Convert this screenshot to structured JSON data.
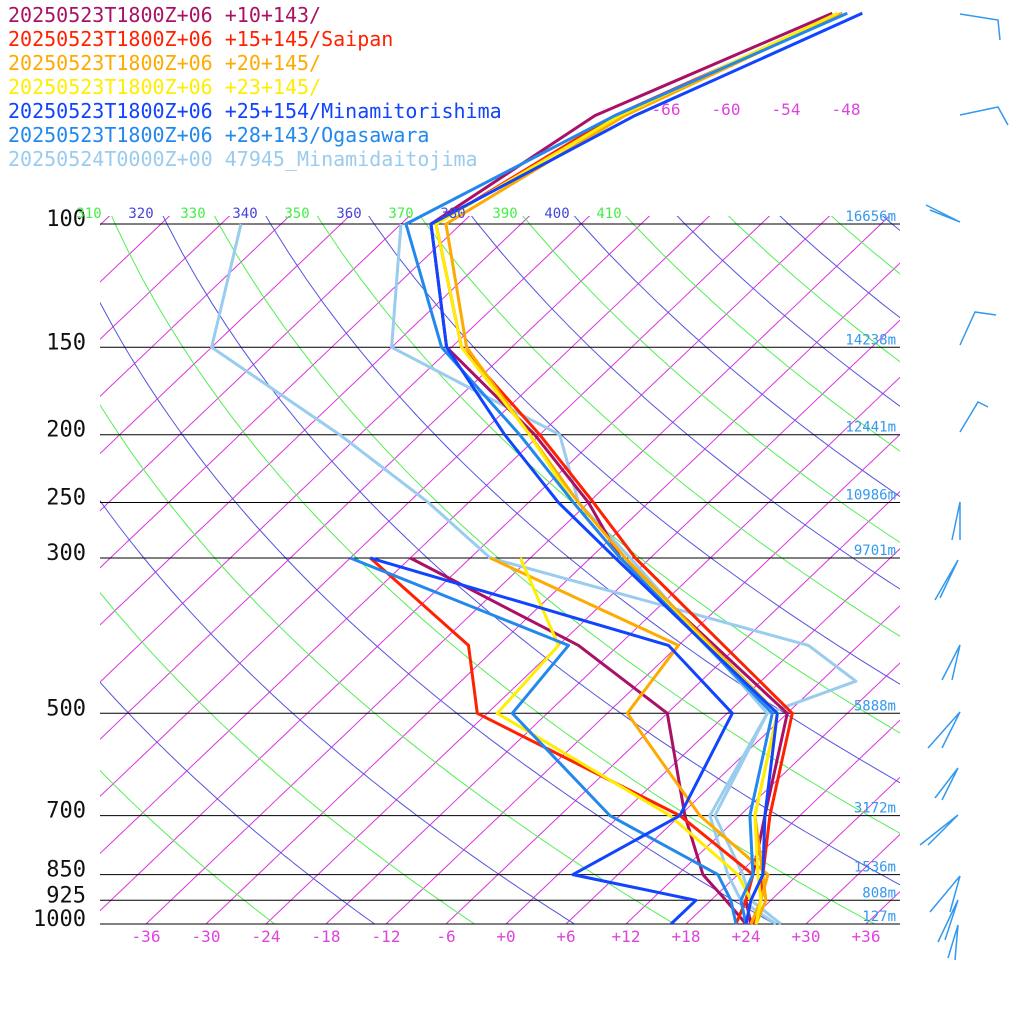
{
  "chart_data": {
    "type": "line",
    "title": "",
    "xlabel": "",
    "ylabel": "",
    "x_ticks": [
      "-36",
      "-30",
      "-24",
      "-18",
      "-12",
      "-6",
      "+0",
      "+6",
      "+12",
      "+18",
      "+24",
      "+30",
      "+36"
    ],
    "pressure_levels": [
      {
        "p": 100,
        "label": "100",
        "height": "16656m"
      },
      {
        "p": 150,
        "label": "150",
        "height": "14238m"
      },
      {
        "p": 200,
        "label": "200",
        "height": "12441m"
      },
      {
        "p": 250,
        "label": "250",
        "height": "10986m"
      },
      {
        "p": 300,
        "label": "300",
        "height": "9701m"
      },
      {
        "p": 500,
        "label": "500",
        "height": "5888m"
      },
      {
        "p": 700,
        "label": "700",
        "height": "3172m"
      },
      {
        "p": 850,
        "label": "850",
        "height": "1536m"
      },
      {
        "p": 925,
        "label": "925",
        "height": "808m"
      },
      {
        "p": 1000,
        "label": "1000",
        "height": "127m"
      }
    ],
    "theta_labels": [
      {
        "value": "310",
        "color": "#44ee44"
      },
      {
        "value": "320",
        "color": "#4444dd"
      },
      {
        "value": "330",
        "color": "#44ee44"
      },
      {
        "value": "340",
        "color": "#4444dd"
      },
      {
        "value": "350",
        "color": "#44ee44"
      },
      {
        "value": "360",
        "color": "#4444dd"
      },
      {
        "value": "370",
        "color": "#44ee44"
      },
      {
        "value": "380",
        "color": "#4444dd"
      },
      {
        "value": "390",
        "color": "#44ee44"
      },
      {
        "value": "400",
        "color": "#4444dd"
      },
      {
        "value": "410",
        "color": "#44ee44"
      }
    ],
    "isotherm_labels": [
      "-66",
      "-60",
      "-54",
      "-48"
    ],
    "legend_placement": "top-left",
    "series": [
      {
        "name": "20250523T1800Z+06 +10+143/",
        "color": "#aa1166",
        "temperature": [
          [
            1000,
            24.5
          ],
          [
            925,
            21.5
          ],
          [
            850,
            19.5
          ],
          [
            700,
            14.5
          ],
          [
            500,
            6.0
          ],
          [
            300,
            -27.0
          ],
          [
            250,
            -36.0
          ],
          [
            200,
            -48.5
          ],
          [
            150,
            -66.5
          ],
          [
            100,
            -81.0
          ],
          [
            70,
            -76.0
          ],
          [
            50,
            -63.0
          ]
        ],
        "dewpoint": [
          [
            1000,
            24.0
          ],
          [
            925,
            19.5
          ],
          [
            850,
            14.5
          ],
          [
            700,
            6.5
          ],
          [
            500,
            -6.0
          ],
          [
            400,
            -22.0
          ],
          [
            300,
            -48.0
          ]
        ]
      },
      {
        "name": "20250523T1800Z+06 +15+145/Saipan",
        "color": "#ff2200",
        "temperature": [
          [
            1000,
            24.8
          ],
          [
            925,
            23.0
          ],
          [
            850,
            20.5
          ],
          [
            700,
            15.0
          ],
          [
            500,
            6.5
          ],
          [
            300,
            -25.5
          ],
          [
            250,
            -35.5
          ],
          [
            200,
            -48.0
          ],
          [
            150,
            -65.0
          ],
          [
            100,
            -80.5
          ],
          [
            70,
            -74.0
          ],
          [
            50,
            -62.0
          ]
        ],
        "dewpoint": [
          [
            1000,
            23.0
          ],
          [
            925,
            21.5
          ],
          [
            850,
            19.5
          ],
          [
            700,
            6.0
          ],
          [
            500,
            -25.0
          ],
          [
            400,
            -33.0
          ],
          [
            300,
            -52.0
          ]
        ]
      },
      {
        "name": "20250523T1800Z+06 +20+145/",
        "color": "#ffaa00",
        "temperature": [
          [
            1000,
            25.0
          ],
          [
            925,
            23.5
          ],
          [
            850,
            20.5
          ],
          [
            700,
            13.5
          ],
          [
            500,
            5.0
          ],
          [
            300,
            -26.5
          ],
          [
            250,
            -37.0
          ],
          [
            200,
            -49.0
          ],
          [
            150,
            -64.5
          ],
          [
            100,
            -79.5
          ],
          [
            70,
            -73.0
          ],
          [
            50,
            -62.0
          ]
        ],
        "dewpoint": [
          [
            1000,
            24.5
          ],
          [
            925,
            23.0
          ],
          [
            850,
            21.0
          ],
          [
            700,
            8.0
          ],
          [
            500,
            -10.0
          ],
          [
            400,
            -12.0
          ],
          [
            300,
            -40.0
          ]
        ]
      },
      {
        "name": "20250523T1800Z+06 +23+145/",
        "color": "#ffee00",
        "temperature": [
          [
            1000,
            25.0
          ],
          [
            925,
            23.0
          ],
          [
            850,
            20.0
          ],
          [
            700,
            13.5
          ],
          [
            500,
            5.0
          ],
          [
            300,
            -27.0
          ],
          [
            250,
            -37.5
          ],
          [
            200,
            -49.0
          ],
          [
            150,
            -65.0
          ],
          [
            100,
            -80.5
          ],
          [
            70,
            -73.5
          ],
          [
            50,
            -62.5
          ]
        ],
        "dewpoint": [
          [
            1000,
            24.0
          ],
          [
            925,
            22.0
          ],
          [
            850,
            18.0
          ],
          [
            700,
            5.0
          ],
          [
            500,
            -23.0
          ],
          [
            400,
            -24.0
          ],
          [
            300,
            -37.0
          ]
        ]
      },
      {
        "name": "20250523T1800Z+06 +25+154/Minamitorishima",
        "color": "#1144ff",
        "temperature": [
          [
            1000,
            24.0
          ],
          [
            925,
            22.0
          ],
          [
            850,
            20.5
          ],
          [
            700,
            14.5
          ],
          [
            500,
            5.0
          ],
          [
            300,
            -27.5
          ],
          [
            250,
            -39.0
          ],
          [
            200,
            -51.5
          ],
          [
            150,
            -66.5
          ],
          [
            100,
            -81.0
          ],
          [
            70,
            -72.0
          ],
          [
            50,
            -60.0
          ]
        ],
        "dewpoint": [
          [
            1000,
            16.5
          ],
          [
            925,
            16.5
          ],
          [
            850,
            1.5
          ],
          [
            700,
            6.0
          ],
          [
            500,
            0.5
          ],
          [
            400,
            -13.0
          ],
          [
            300,
            -52.0
          ]
        ]
      },
      {
        "name": "20250523T1800Z+06 +28+143/Ogasawara",
        "color": "#2288ee",
        "temperature": [
          [
            1000,
            24.0
          ],
          [
            925,
            21.0
          ],
          [
            850,
            19.5
          ],
          [
            700,
            13.0
          ],
          [
            500,
            4.5
          ],
          [
            300,
            -27.0
          ],
          [
            250,
            -37.5
          ],
          [
            200,
            -50.0
          ],
          [
            150,
            -67.0
          ],
          [
            100,
            -83.5
          ],
          [
            70,
            -74.0
          ],
          [
            50,
            -61.5
          ]
        ],
        "dewpoint": [
          [
            1000,
            23.0
          ],
          [
            925,
            20.0
          ],
          [
            850,
            16.0
          ],
          [
            700,
            -1.0
          ],
          [
            500,
            -21.5
          ],
          [
            400,
            -23.0
          ],
          [
            300,
            -54.0
          ]
        ]
      },
      {
        "name": "20250524T0000Z+00 47945_Minamidaitojima",
        "color": "#99ccee",
        "temperature": [
          [
            1000,
            27.5
          ],
          [
            925,
            22.0
          ],
          [
            850,
            18.5
          ],
          [
            700,
            9.5
          ],
          [
            500,
            4.0
          ],
          [
            300,
            -26.0
          ],
          [
            250,
            -37.0
          ],
          [
            200,
            -46.0
          ],
          [
            150,
            -72.0
          ],
          [
            100,
            -84.0
          ]
        ],
        "dewpoint": [
          [
            1000,
            27.0
          ],
          [
            925,
            21.0
          ],
          [
            850,
            17.0
          ],
          [
            700,
            9.0
          ],
          [
            500,
            4.0
          ],
          [
            450,
            9.5
          ],
          [
            400,
            1.0
          ],
          [
            300,
            -40.0
          ],
          [
            250,
            -52.0
          ],
          [
            200,
            -68.0
          ],
          [
            150,
            -90.0
          ],
          [
            100,
            -100.0
          ]
        ]
      }
    ]
  }
}
